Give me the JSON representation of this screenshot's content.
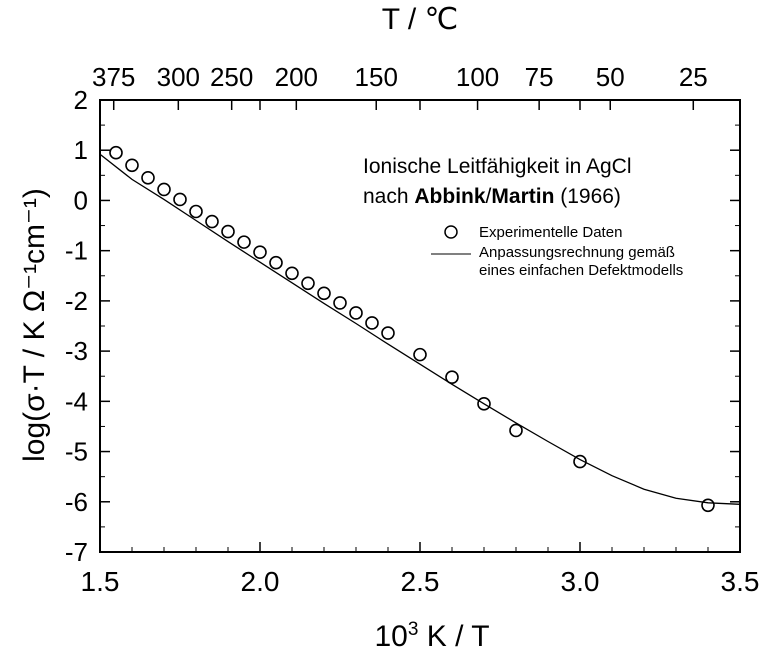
{
  "chart_data": {
    "type": "scatter",
    "title": "",
    "xlabel_base": "10",
    "xlabel_exp": "3",
    "xlabel_rest": " K / T",
    "top_axis_label": "T / ℃",
    "ylabel": "log(σ·T / K Ω⁻¹cm⁻¹)",
    "xlim": [
      1.5,
      3.5
    ],
    "ylim": [
      -7,
      2
    ],
    "x_ticks": [
      "1.5",
      "2.0",
      "2.5",
      "3.0",
      "3.5"
    ],
    "y_ticks": [
      "2",
      "1",
      "0",
      "-1",
      "-2",
      "-3",
      "-4",
      "-5",
      "-6",
      "-7"
    ],
    "top_ticks": [
      "375",
      "300",
      "250",
      "200",
      "150",
      "100",
      "75",
      "50",
      "25"
    ],
    "annotation": {
      "line1": "Ionische Leitfähigkeit in AgCl",
      "line2_prefix": "nach ",
      "author1": "Abbink",
      "separator": "/",
      "author2": "Martin",
      "year": " (1966)"
    },
    "legend": {
      "markers_label": "Experimentelle Daten",
      "line_label_1": "Anpassungsrechnung gemäß",
      "line_label_2": "eines einfachen Defektmodells"
    },
    "series": [
      {
        "kind": "markers",
        "points": [
          [
            1.55,
            0.95
          ],
          [
            1.6,
            0.7
          ],
          [
            1.65,
            0.45
          ],
          [
            1.7,
            0.22
          ],
          [
            1.75,
            0.02
          ],
          [
            1.8,
            -0.22
          ],
          [
            1.85,
            -0.42
          ],
          [
            1.9,
            -0.62
          ],
          [
            1.95,
            -0.83
          ],
          [
            2.0,
            -1.03
          ],
          [
            2.05,
            -1.24
          ],
          [
            2.1,
            -1.45
          ],
          [
            2.15,
            -1.65
          ],
          [
            2.2,
            -1.85
          ],
          [
            2.25,
            -2.04
          ],
          [
            2.3,
            -2.24
          ],
          [
            2.35,
            -2.44
          ],
          [
            2.4,
            -2.64
          ],
          [
            2.5,
            -3.07
          ],
          [
            2.6,
            -3.52
          ],
          [
            2.7,
            -4.05
          ],
          [
            2.8,
            -4.58
          ],
          [
            3.0,
            -5.2
          ],
          [
            3.4,
            -6.07
          ]
        ]
      },
      {
        "kind": "line",
        "points": [
          [
            1.5,
            0.92
          ],
          [
            1.6,
            0.42
          ],
          [
            1.7,
            0.02
          ],
          [
            1.8,
            -0.4
          ],
          [
            1.9,
            -0.82
          ],
          [
            2.0,
            -1.23
          ],
          [
            2.1,
            -1.64
          ],
          [
            2.2,
            -2.05
          ],
          [
            2.3,
            -2.45
          ],
          [
            2.4,
            -2.86
          ],
          [
            2.5,
            -3.26
          ],
          [
            2.6,
            -3.66
          ],
          [
            2.7,
            -4.05
          ],
          [
            2.8,
            -4.43
          ],
          [
            2.9,
            -4.8
          ],
          [
            3.0,
            -5.16
          ],
          [
            3.1,
            -5.48
          ],
          [
            3.2,
            -5.75
          ],
          [
            3.3,
            -5.93
          ],
          [
            3.4,
            -6.02
          ],
          [
            3.5,
            -6.05
          ]
        ]
      }
    ]
  }
}
